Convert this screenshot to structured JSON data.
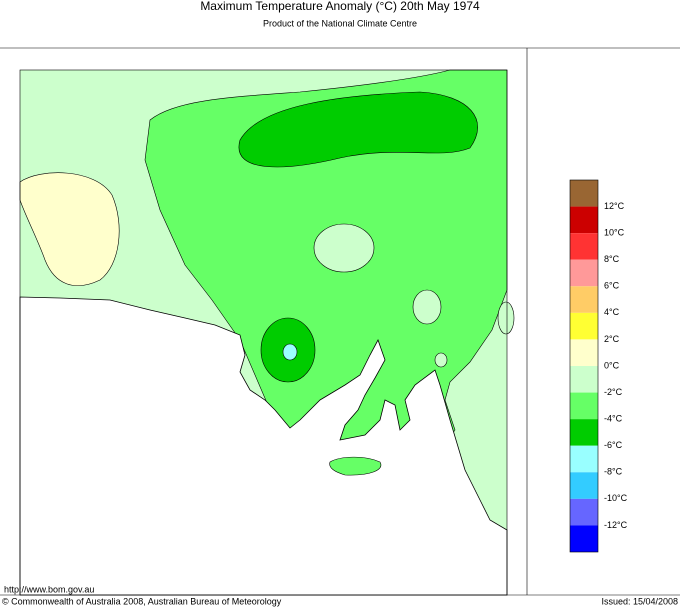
{
  "header": {
    "title": "Maximum Temperature Anomaly (°C)  20th May 1974",
    "subtitle": "Product of the National Climate Centre"
  },
  "legend": {
    "colors": [
      "#996633",
      "#cc0000",
      "#ff3333",
      "#ff9999",
      "#ffcc66",
      "#ffff33",
      "#ffffcc",
      "#ccffcc",
      "#66ff66",
      "#00cc00",
      "#99ffff",
      "#33ccff",
      "#6666ff",
      "#0000ff"
    ],
    "labels": [
      "12°C",
      "10°C",
      "8°C",
      "6°C",
      "4°C",
      "2°C",
      "0°C",
      "-2°C",
      "-4°C",
      "-6°C",
      "-8°C",
      "-10°C",
      "-12°C"
    ]
  },
  "footer": {
    "url": "http://www.bom.gov.au",
    "copyright": "© Commonwealth of Australia 2008, Australian Bureau of Meteorology",
    "issued": "Issued: 15/04/2008"
  }
}
